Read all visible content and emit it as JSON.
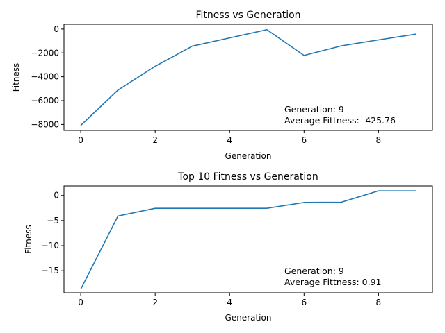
{
  "chart_data": [
    {
      "type": "line",
      "title": "Fitness vs Generation",
      "xlabel": "Generation",
      "ylabel": "Fitness",
      "xlim": [
        -0.45,
        9.45
      ],
      "ylim": [
        -8500,
        400
      ],
      "xticks": [
        0,
        2,
        4,
        6,
        8
      ],
      "xtick_labels": [
        "0",
        "2",
        "4",
        "6",
        "8"
      ],
      "yticks": [
        -8000,
        -6000,
        -4000,
        -2000,
        0
      ],
      "ytick_labels": [
        "−8000",
        "−6000",
        "−4000",
        "−2000",
        "0"
      ],
      "grid": false,
      "color": "#1f77b4",
      "x": [
        0,
        1,
        2,
        3,
        4,
        5,
        6,
        7,
        8,
        9
      ],
      "y": [
        -8080,
        -5120,
        -3120,
        -1430,
        -740,
        -50,
        -2210,
        -1410,
        -910,
        -425.76
      ],
      "annotation": [
        "Generation: 9",
        "Average Fittness: -425.76"
      ]
    },
    {
      "type": "line",
      "title": "Top 10 Fitness vs Generation",
      "xlabel": "Generation",
      "ylabel": "Fitness",
      "xlim": [
        -0.45,
        9.45
      ],
      "ylim": [
        -19.4,
        1.9
      ],
      "xticks": [
        0,
        2,
        4,
        6,
        8
      ],
      "xtick_labels": [
        "0",
        "2",
        "4",
        "6",
        "8"
      ],
      "yticks": [
        -15,
        -10,
        -5,
        0
      ],
      "ytick_labels": [
        "−15",
        "−10",
        "−5",
        "0"
      ],
      "grid": false,
      "color": "#1f77b4",
      "x": [
        0,
        1,
        2,
        3,
        4,
        5,
        6,
        7,
        8,
        9
      ],
      "y": [
        -18.7,
        -4.1,
        -2.55,
        -2.55,
        -2.55,
        -2.55,
        -1.4,
        -1.35,
        0.91,
        0.91
      ],
      "annotation": [
        "Generation: 9",
        "Average Fittness: 0.91"
      ]
    }
  ]
}
